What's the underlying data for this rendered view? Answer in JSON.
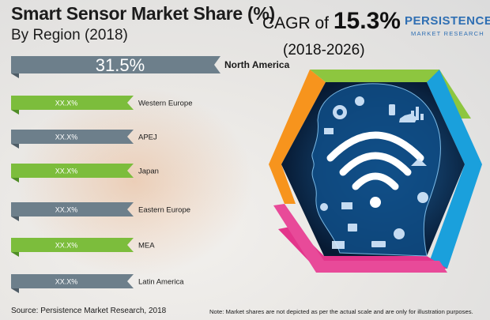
{
  "header": {
    "title": "Smart Sensor Market Share (%)",
    "subtitle": "By Region (2018)",
    "cagr_prefix": "CAGR of",
    "cagr_value": "15.3%",
    "cagr_period": "(2018-2026)"
  },
  "logo": {
    "name": "PERSISTENCE",
    "tagline": "MARKET RESEARCH"
  },
  "chart_data": {
    "type": "bar",
    "title": "Smart Sensor Market Share (%)",
    "subtitle": "By Region (2018)",
    "categories": [
      "North America",
      "Western Europe",
      "APEJ",
      "Japan",
      "Eastern Europe",
      "MEA",
      "Latin America"
    ],
    "value_labels": [
      "31.5%",
      "XX.X%",
      "XX.X%",
      "XX.X%",
      "XX.X%",
      "XX.X%",
      "XX.X%"
    ],
    "values": [
      31.5,
      null,
      null,
      null,
      null,
      null,
      null
    ],
    "colors": [
      "#6d7f8b",
      "#7cbd3c",
      "#6d7f8b",
      "#7cbd3c",
      "#6d7f8b",
      "#7cbd3c",
      "#6d7f8b"
    ],
    "xlabel": "",
    "ylabel": ""
  },
  "footer": {
    "source": "Source: Persistence Market Research, 2018",
    "note": "Note: Market shares are not depicted as per the actual scale and are only for illustration purposes."
  }
}
